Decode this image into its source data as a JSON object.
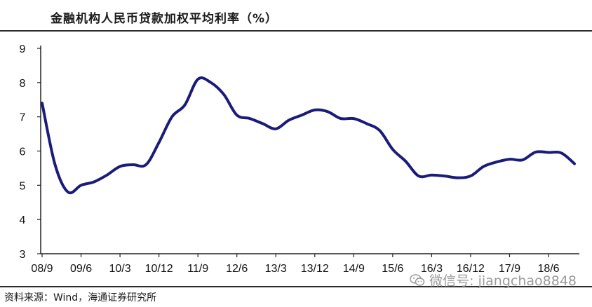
{
  "header": {
    "title": "金融机构人民币贷款加权平均利率（%）"
  },
  "footer": {
    "source": "资料来源：Wind，海通证券研究所"
  },
  "watermark": {
    "text": "微信号: jiangchao8848",
    "icon": "wechat-icon"
  },
  "colors": {
    "line": "#1b1b7a",
    "axis": "#222222",
    "rule": "#2d2d2d"
  },
  "chart_data": {
    "type": "line",
    "title": "金融机构人民币贷款加权平均利率（%）",
    "xlabel": "",
    "ylabel": "",
    "ylim": [
      3,
      9
    ],
    "yticks": [
      3,
      4,
      5,
      6,
      7,
      8,
      9
    ],
    "xticks": [
      "08/9",
      "09/6",
      "10/3",
      "10/12",
      "11/9",
      "12/6",
      "13/3",
      "13/12",
      "14/9",
      "15/6",
      "16/3",
      "16/12",
      "17/9",
      "18/6"
    ],
    "grid": false,
    "legend": "none",
    "series": [
      {
        "values": [
          [
            "08/9",
            7.4
          ],
          [
            "08/12",
            5.6
          ],
          [
            "09/3",
            4.8
          ],
          [
            "09/6",
            5.0
          ],
          [
            "09/9",
            5.1
          ],
          [
            "09/12",
            5.3
          ],
          [
            "10/3",
            5.55
          ],
          [
            "10/6",
            5.6
          ],
          [
            "10/9",
            5.6
          ],
          [
            "10/12",
            6.25
          ],
          [
            "11/3",
            7.0
          ],
          [
            "11/6",
            7.35
          ],
          [
            "11/9",
            8.1
          ],
          [
            "11/12",
            8.0
          ],
          [
            "12/3",
            7.65
          ],
          [
            "12/6",
            7.05
          ],
          [
            "12/9",
            6.95
          ],
          [
            "12/12",
            6.8
          ],
          [
            "13/3",
            6.65
          ],
          [
            "13/6",
            6.9
          ],
          [
            "13/9",
            7.05
          ],
          [
            "13/12",
            7.2
          ],
          [
            "14/3",
            7.15
          ],
          [
            "14/6",
            6.95
          ],
          [
            "14/9",
            6.95
          ],
          [
            "14/12",
            6.8
          ],
          [
            "15/3",
            6.6
          ],
          [
            "15/6",
            6.05
          ],
          [
            "15/9",
            5.7
          ],
          [
            "15/12",
            5.27
          ],
          [
            "16/3",
            5.3
          ],
          [
            "16/6",
            5.27
          ],
          [
            "16/9",
            5.22
          ],
          [
            "16/12",
            5.27
          ],
          [
            "17/3",
            5.55
          ],
          [
            "17/6",
            5.68
          ],
          [
            "17/9",
            5.76
          ],
          [
            "17/12",
            5.74
          ],
          [
            "18/3",
            5.97
          ],
          [
            "18/6",
            5.96
          ],
          [
            "18/9",
            5.94
          ],
          [
            "18/12",
            5.63
          ]
        ]
      }
    ]
  }
}
